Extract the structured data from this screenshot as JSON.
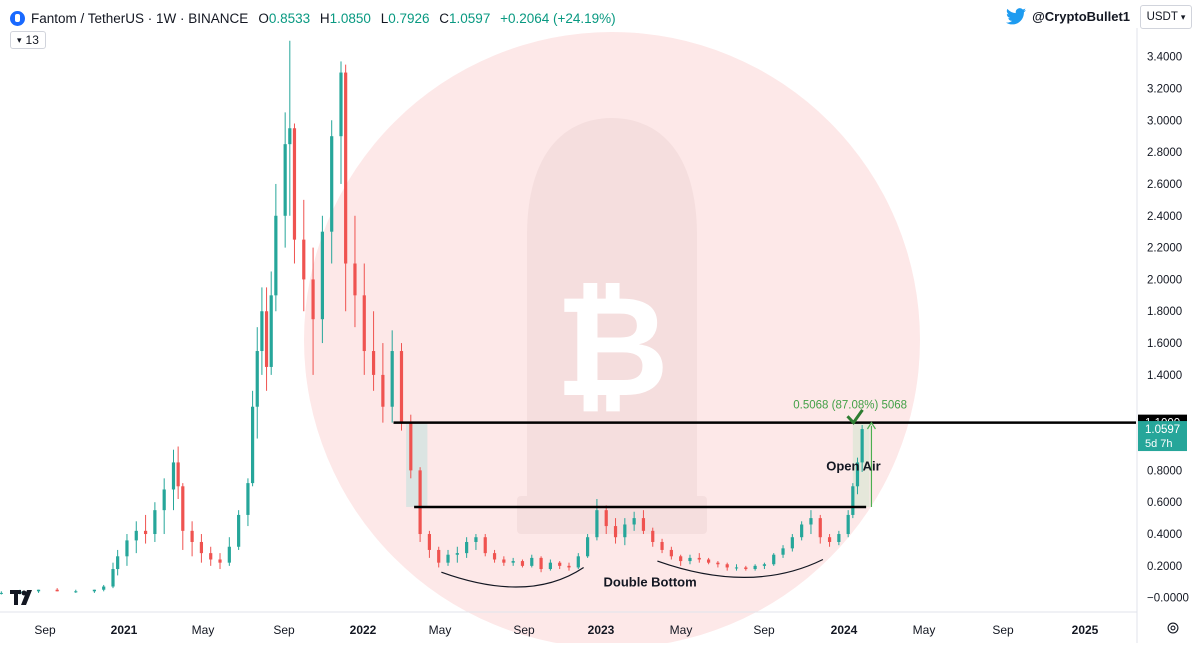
{
  "header": {
    "symbol": "Fantom / TetherUS · 1W · BINANCE",
    "open_label": "O",
    "open": "0.8533",
    "high_label": "H",
    "high": "1.0850",
    "low_label": "L",
    "low": "0.7926",
    "close_label": "C",
    "close": "1.0597",
    "change": "+0.2064 (+24.19%)"
  },
  "indicator_badge": {
    "value": "13"
  },
  "author": {
    "handle": "@CryptoBullet1",
    "icon": "twitter-bird-icon"
  },
  "currency_button": {
    "label": "USDT",
    "icon": "chevron-down-icon"
  },
  "colors": {
    "up": "#26a69a",
    "down": "#ef5350",
    "watermark": "#fde8e8",
    "level_line": "#000000",
    "measure": "#4caf50",
    "last_price_bg": "#26a69a"
  },
  "chart_data": {
    "type": "candlestick",
    "title": "Fantom / TetherUS · 1W · BINANCE",
    "x_ticks": [
      "Sep",
      "2021",
      "May",
      "Sep",
      "2022",
      "May",
      "Sep",
      "2023",
      "May",
      "Sep",
      "2024",
      "May",
      "Sep",
      "2025"
    ],
    "y_ticks": [
      "3.4000",
      "3.2000",
      "3.0000",
      "2.8000",
      "2.6000",
      "2.4000",
      "2.2000",
      "2.0000",
      "1.8000",
      "1.6000",
      "1.4000",
      "1.1000",
      "1.0597",
      "0.8000",
      "0.6000",
      "0.4000",
      "0.2000",
      "0.0000"
    ],
    "ylim": [
      -0.09,
      3.58
    ],
    "xlim": [
      "2020-08-15",
      "2025-04-20"
    ],
    "levels": [
      {
        "label": "resistance",
        "value": 1.1,
        "from": "2022-03-30",
        "to": "2025-04-20"
      },
      {
        "label": "neckline",
        "value": 0.57,
        "from": "2022-04-30",
        "to": "2024-03-10"
      }
    ],
    "price_labels": [
      {
        "text": "1.1000",
        "value": 1.1,
        "style": "black"
      },
      {
        "text": "1.0597",
        "value": 1.0597,
        "style": "green",
        "sub": "5d 7h"
      }
    ],
    "annotations": [
      {
        "text": "Open Air",
        "date": "2024-01-10",
        "value": 0.8
      },
      {
        "text": "Double Bottom",
        "date": "2023-04-20",
        "value": 0.07
      },
      {
        "text": "0.5068 (87.08%) 5068",
        "date": "2024-02-15",
        "value": 1.19
      }
    ],
    "candles": [
      {
        "t": "2020-08-17",
        "o": 0.03,
        "h": 0.04,
        "l": 0.02,
        "c": 0.03
      },
      {
        "t": "2020-09-14",
        "o": 0.03,
        "h": 0.05,
        "l": 0.02,
        "c": 0.04
      },
      {
        "t": "2020-10-12",
        "o": 0.04,
        "h": 0.05,
        "l": 0.03,
        "c": 0.05
      },
      {
        "t": "2020-11-09",
        "o": 0.05,
        "h": 0.06,
        "l": 0.04,
        "c": 0.04
      },
      {
        "t": "2020-12-07",
        "o": 0.04,
        "h": 0.05,
        "l": 0.03,
        "c": 0.04
      },
      {
        "t": "2021-01-04",
        "o": 0.04,
        "h": 0.05,
        "l": 0.03,
        "c": 0.05
      },
      {
        "t": "2021-01-18",
        "o": 0.05,
        "h": 0.08,
        "l": 0.04,
        "c": 0.07
      },
      {
        "t": "2021-02-01",
        "o": 0.07,
        "h": 0.22,
        "l": 0.06,
        "c": 0.18
      },
      {
        "t": "2021-02-08",
        "o": 0.18,
        "h": 0.3,
        "l": 0.14,
        "c": 0.26
      },
      {
        "t": "2021-02-22",
        "o": 0.26,
        "h": 0.4,
        "l": 0.2,
        "c": 0.36
      },
      {
        "t": "2021-03-08",
        "o": 0.36,
        "h": 0.48,
        "l": 0.28,
        "c": 0.42
      },
      {
        "t": "2021-03-22",
        "o": 0.42,
        "h": 0.52,
        "l": 0.34,
        "c": 0.4
      },
      {
        "t": "2021-04-05",
        "o": 0.4,
        "h": 0.6,
        "l": 0.35,
        "c": 0.55
      },
      {
        "t": "2021-04-19",
        "o": 0.55,
        "h": 0.75,
        "l": 0.4,
        "c": 0.68
      },
      {
        "t": "2021-05-03",
        "o": 0.68,
        "h": 0.93,
        "l": 0.55,
        "c": 0.85
      },
      {
        "t": "2021-05-10",
        "o": 0.85,
        "h": 0.95,
        "l": 0.62,
        "c": 0.7
      },
      {
        "t": "2021-05-17",
        "o": 0.7,
        "h": 0.72,
        "l": 0.3,
        "c": 0.42
      },
      {
        "t": "2021-05-31",
        "o": 0.42,
        "h": 0.48,
        "l": 0.26,
        "c": 0.35
      },
      {
        "t": "2021-06-14",
        "o": 0.35,
        "h": 0.4,
        "l": 0.22,
        "c": 0.28
      },
      {
        "t": "2021-06-28",
        "o": 0.28,
        "h": 0.32,
        "l": 0.2,
        "c": 0.24
      },
      {
        "t": "2021-07-12",
        "o": 0.24,
        "h": 0.28,
        "l": 0.18,
        "c": 0.22
      },
      {
        "t": "2021-07-26",
        "o": 0.22,
        "h": 0.38,
        "l": 0.2,
        "c": 0.32
      },
      {
        "t": "2021-08-09",
        "o": 0.32,
        "h": 0.55,
        "l": 0.3,
        "c": 0.52
      },
      {
        "t": "2021-08-23",
        "o": 0.52,
        "h": 0.75,
        "l": 0.45,
        "c": 0.72
      },
      {
        "t": "2021-08-30",
        "o": 0.72,
        "h": 1.3,
        "l": 0.7,
        "c": 1.2
      },
      {
        "t": "2021-09-06",
        "o": 1.2,
        "h": 1.7,
        "l": 1.0,
        "c": 1.55
      },
      {
        "t": "2021-09-13",
        "o": 1.55,
        "h": 1.95,
        "l": 1.4,
        "c": 1.8
      },
      {
        "t": "2021-09-20",
        "o": 1.8,
        "h": 1.95,
        "l": 1.3,
        "c": 1.45
      },
      {
        "t": "2021-09-27",
        "o": 1.45,
        "h": 2.05,
        "l": 1.4,
        "c": 1.9
      },
      {
        "t": "2021-10-04",
        "o": 1.9,
        "h": 2.6,
        "l": 1.8,
        "c": 2.4
      },
      {
        "t": "2021-10-18",
        "o": 2.4,
        "h": 3.05,
        "l": 2.2,
        "c": 2.85
      },
      {
        "t": "2021-10-25",
        "o": 2.85,
        "h": 3.5,
        "l": 2.4,
        "c": 2.95
      },
      {
        "t": "2021-11-01",
        "o": 2.95,
        "h": 2.98,
        "l": 2.1,
        "c": 2.25
      },
      {
        "t": "2021-11-15",
        "o": 2.25,
        "h": 2.5,
        "l": 1.8,
        "c": 2.0
      },
      {
        "t": "2021-11-29",
        "o": 2.0,
        "h": 2.2,
        "l": 1.4,
        "c": 1.75
      },
      {
        "t": "2021-12-13",
        "o": 1.75,
        "h": 2.4,
        "l": 1.6,
        "c": 2.3
      },
      {
        "t": "2021-12-27",
        "o": 2.3,
        "h": 3.0,
        "l": 2.1,
        "c": 2.9
      },
      {
        "t": "2022-01-10",
        "o": 2.9,
        "h": 3.37,
        "l": 2.6,
        "c": 3.3
      },
      {
        "t": "2022-01-17",
        "o": 3.3,
        "h": 3.35,
        "l": 1.8,
        "c": 2.1
      },
      {
        "t": "2022-01-31",
        "o": 2.1,
        "h": 2.4,
        "l": 1.7,
        "c": 1.9
      },
      {
        "t": "2022-02-14",
        "o": 1.9,
        "h": 2.1,
        "l": 1.4,
        "c": 1.55
      },
      {
        "t": "2022-02-28",
        "o": 1.55,
        "h": 1.8,
        "l": 1.3,
        "c": 1.4
      },
      {
        "t": "2022-03-14",
        "o": 1.4,
        "h": 1.6,
        "l": 1.1,
        "c": 1.2
      },
      {
        "t": "2022-03-28",
        "o": 1.2,
        "h": 1.68,
        "l": 1.1,
        "c": 1.55
      },
      {
        "t": "2022-04-11",
        "o": 1.55,
        "h": 1.6,
        "l": 1.05,
        "c": 1.1
      },
      {
        "t": "2022-04-25",
        "o": 1.1,
        "h": 1.15,
        "l": 0.75,
        "c": 0.8
      },
      {
        "t": "2022-05-09",
        "o": 0.8,
        "h": 0.82,
        "l": 0.35,
        "c": 0.4
      },
      {
        "t": "2022-05-23",
        "o": 0.4,
        "h": 0.42,
        "l": 0.25,
        "c": 0.3
      },
      {
        "t": "2022-06-06",
        "o": 0.3,
        "h": 0.32,
        "l": 0.19,
        "c": 0.22
      },
      {
        "t": "2022-06-20",
        "o": 0.22,
        "h": 0.3,
        "l": 0.2,
        "c": 0.27
      },
      {
        "t": "2022-07-04",
        "o": 0.27,
        "h": 0.32,
        "l": 0.22,
        "c": 0.28
      },
      {
        "t": "2022-07-18",
        "o": 0.28,
        "h": 0.38,
        "l": 0.25,
        "c": 0.35
      },
      {
        "t": "2022-08-01",
        "o": 0.35,
        "h": 0.4,
        "l": 0.3,
        "c": 0.38
      },
      {
        "t": "2022-08-15",
        "o": 0.38,
        "h": 0.4,
        "l": 0.26,
        "c": 0.28
      },
      {
        "t": "2022-08-29",
        "o": 0.28,
        "h": 0.3,
        "l": 0.22,
        "c": 0.24
      },
      {
        "t": "2022-09-12",
        "o": 0.24,
        "h": 0.26,
        "l": 0.2,
        "c": 0.22
      },
      {
        "t": "2022-09-26",
        "o": 0.22,
        "h": 0.25,
        "l": 0.2,
        "c": 0.23
      },
      {
        "t": "2022-10-10",
        "o": 0.23,
        "h": 0.24,
        "l": 0.19,
        "c": 0.2
      },
      {
        "t": "2022-10-24",
        "o": 0.2,
        "h": 0.27,
        "l": 0.19,
        "c": 0.25
      },
      {
        "t": "2022-11-07",
        "o": 0.25,
        "h": 0.26,
        "l": 0.16,
        "c": 0.18
      },
      {
        "t": "2022-11-21",
        "o": 0.18,
        "h": 0.24,
        "l": 0.17,
        "c": 0.22
      },
      {
        "t": "2022-12-05",
        "o": 0.22,
        "h": 0.23,
        "l": 0.18,
        "c": 0.2
      },
      {
        "t": "2022-12-19",
        "o": 0.2,
        "h": 0.22,
        "l": 0.17,
        "c": 0.19
      },
      {
        "t": "2023-01-02",
        "o": 0.19,
        "h": 0.28,
        "l": 0.18,
        "c": 0.26
      },
      {
        "t": "2023-01-16",
        "o": 0.26,
        "h": 0.4,
        "l": 0.25,
        "c": 0.38
      },
      {
        "t": "2023-01-30",
        "o": 0.38,
        "h": 0.62,
        "l": 0.36,
        "c": 0.55
      },
      {
        "t": "2023-02-13",
        "o": 0.55,
        "h": 0.58,
        "l": 0.4,
        "c": 0.45
      },
      {
        "t": "2023-02-27",
        "o": 0.45,
        "h": 0.5,
        "l": 0.34,
        "c": 0.38
      },
      {
        "t": "2023-03-13",
        "o": 0.38,
        "h": 0.5,
        "l": 0.33,
        "c": 0.46
      },
      {
        "t": "2023-03-27",
        "o": 0.46,
        "h": 0.54,
        "l": 0.42,
        "c": 0.5
      },
      {
        "t": "2023-04-10",
        "o": 0.5,
        "h": 0.55,
        "l": 0.4,
        "c": 0.42
      },
      {
        "t": "2023-04-24",
        "o": 0.42,
        "h": 0.44,
        "l": 0.32,
        "c": 0.35
      },
      {
        "t": "2023-05-08",
        "o": 0.35,
        "h": 0.37,
        "l": 0.28,
        "c": 0.3
      },
      {
        "t": "2023-05-22",
        "o": 0.3,
        "h": 0.32,
        "l": 0.24,
        "c": 0.26
      },
      {
        "t": "2023-06-05",
        "o": 0.26,
        "h": 0.27,
        "l": 0.2,
        "c": 0.23
      },
      {
        "t": "2023-06-19",
        "o": 0.23,
        "h": 0.27,
        "l": 0.21,
        "c": 0.25
      },
      {
        "t": "2023-07-03",
        "o": 0.25,
        "h": 0.28,
        "l": 0.22,
        "c": 0.24
      },
      {
        "t": "2023-07-17",
        "o": 0.24,
        "h": 0.25,
        "l": 0.21,
        "c": 0.22
      },
      {
        "t": "2023-07-31",
        "o": 0.22,
        "h": 0.23,
        "l": 0.19,
        "c": 0.21
      },
      {
        "t": "2023-08-14",
        "o": 0.21,
        "h": 0.22,
        "l": 0.17,
        "c": 0.19
      },
      {
        "t": "2023-08-28",
        "o": 0.19,
        "h": 0.21,
        "l": 0.17,
        "c": 0.19
      },
      {
        "t": "2023-09-11",
        "o": 0.19,
        "h": 0.2,
        "l": 0.17,
        "c": 0.18
      },
      {
        "t": "2023-09-25",
        "o": 0.18,
        "h": 0.21,
        "l": 0.17,
        "c": 0.2
      },
      {
        "t": "2023-10-09",
        "o": 0.2,
        "h": 0.22,
        "l": 0.18,
        "c": 0.21
      },
      {
        "t": "2023-10-23",
        "o": 0.21,
        "h": 0.28,
        "l": 0.2,
        "c": 0.27
      },
      {
        "t": "2023-11-06",
        "o": 0.27,
        "h": 0.33,
        "l": 0.25,
        "c": 0.31
      },
      {
        "t": "2023-11-20",
        "o": 0.31,
        "h": 0.4,
        "l": 0.29,
        "c": 0.38
      },
      {
        "t": "2023-12-04",
        "o": 0.38,
        "h": 0.48,
        "l": 0.36,
        "c": 0.46
      },
      {
        "t": "2023-12-18",
        "o": 0.46,
        "h": 0.55,
        "l": 0.4,
        "c": 0.5
      },
      {
        "t": "2024-01-01",
        "o": 0.5,
        "h": 0.52,
        "l": 0.34,
        "c": 0.38
      },
      {
        "t": "2024-01-15",
        "o": 0.38,
        "h": 0.4,
        "l": 0.32,
        "c": 0.35
      },
      {
        "t": "2024-01-29",
        "o": 0.35,
        "h": 0.42,
        "l": 0.33,
        "c": 0.4
      },
      {
        "t": "2024-02-12",
        "o": 0.4,
        "h": 0.55,
        "l": 0.38,
        "c": 0.52
      },
      {
        "t": "2024-02-19",
        "o": 0.52,
        "h": 0.72,
        "l": 0.5,
        "c": 0.7
      },
      {
        "t": "2024-02-26",
        "o": 0.7,
        "h": 0.88,
        "l": 0.65,
        "c": 0.85
      },
      {
        "t": "2024-03-04",
        "o": 0.85,
        "h": 1.085,
        "l": 0.79,
        "c": 1.0597
      }
    ]
  }
}
